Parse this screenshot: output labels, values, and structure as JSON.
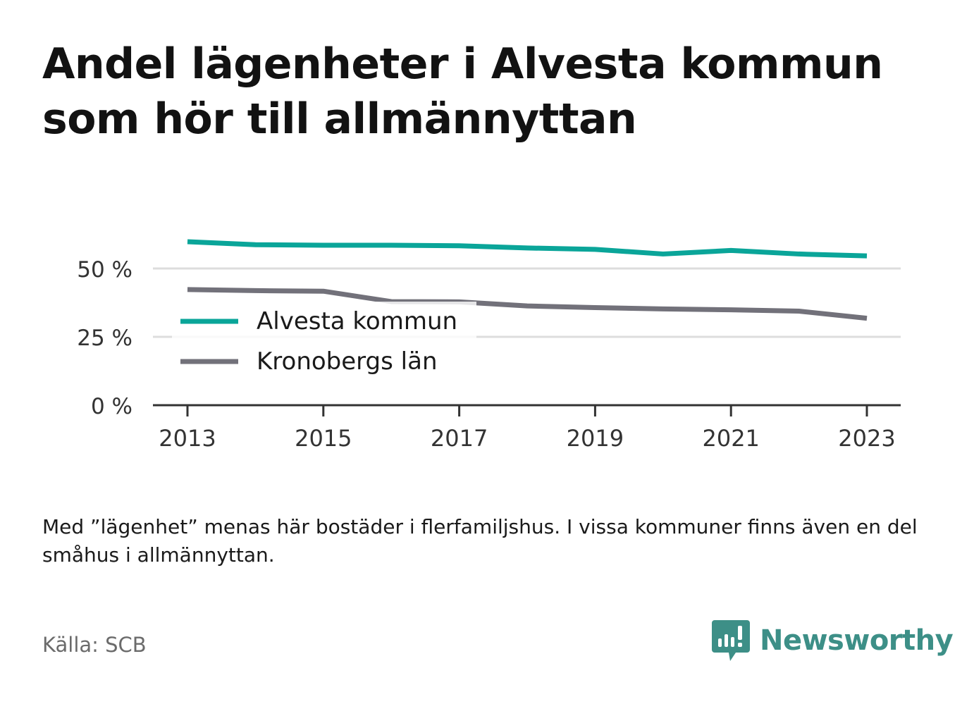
{
  "title": "Andel lägenheter i Alvesta kommun som hör till allmännyttan",
  "note": "Med ”lägenhet” menas här bostäder i flerfamiljshus. I vissa kommuner finns även en del småhus i allmännyttan.",
  "source": "Källa: SCB",
  "logo_text": "Newsworthy",
  "colors": {
    "alvesta": "#0aa599",
    "kronoberg": "#72717a",
    "axis": "#333333",
    "grid": "#dddddd",
    "logo": "#3d8f87"
  },
  "chart_data": {
    "type": "line",
    "x": [
      2013,
      2014,
      2015,
      2016,
      2017,
      2018,
      2019,
      2020,
      2021,
      2022,
      2023
    ],
    "x_ticks": [
      "2013",
      "2015",
      "2017",
      "2019",
      "2021",
      "2023"
    ],
    "y_ticks": [
      0,
      25,
      50
    ],
    "y_tick_labels": [
      "0 %",
      "25 %",
      "50 %"
    ],
    "ylim": [
      0,
      60
    ],
    "grid": true,
    "legend_position": "center-left",
    "series": [
      {
        "name": "Alvesta kommun",
        "color": "#0aa599",
        "values": [
          59.8,
          58.7,
          58.5,
          58.5,
          58.3,
          57.5,
          57.0,
          55.3,
          56.6,
          55.3,
          54.6
        ]
      },
      {
        "name": "Kronobergs län",
        "color": "#72717a",
        "values": [
          42.3,
          41.9,
          41.7,
          37.9,
          37.8,
          36.3,
          35.7,
          35.2,
          34.9,
          34.4,
          31.8
        ]
      }
    ]
  }
}
